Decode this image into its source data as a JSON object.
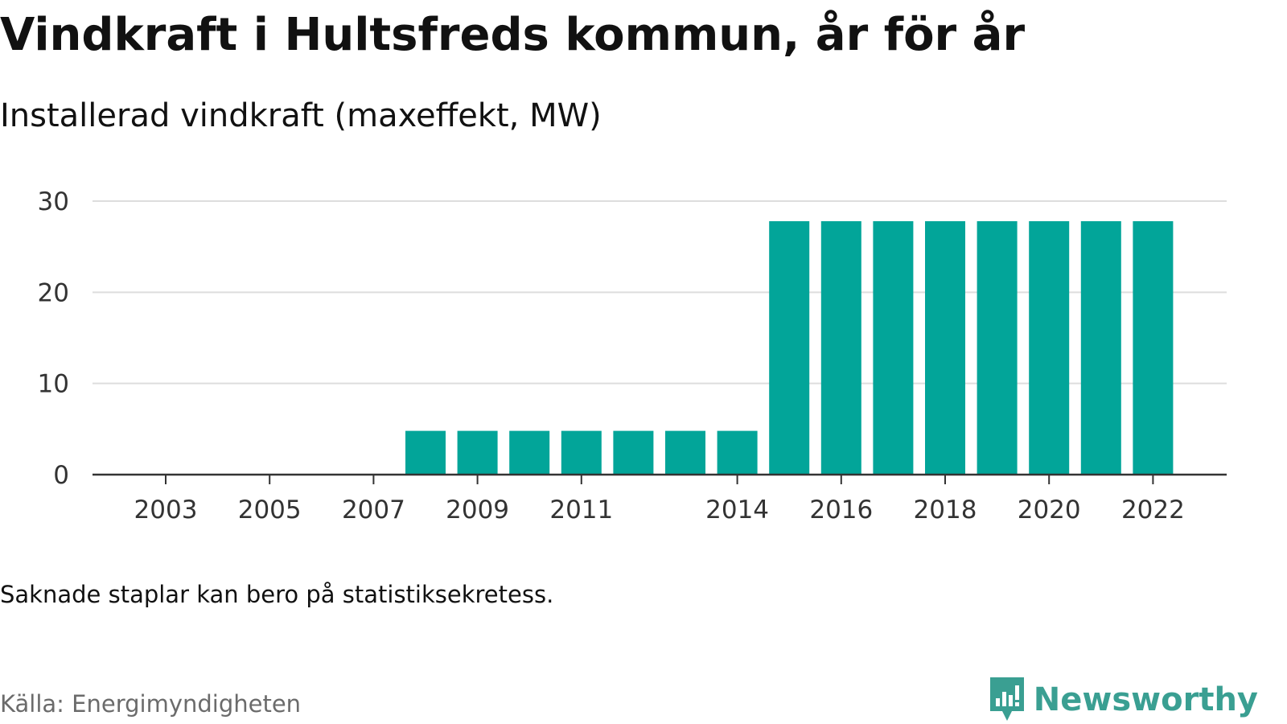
{
  "header": {
    "title": "Vindkraft i Hultsfreds kommun, år för år",
    "subtitle": "Installerad vindkraft (maxeffekt, MW)"
  },
  "footer": {
    "note": "Saknade staplar kan bero på statistiksekretess.",
    "source": "Källa: Energimyndigheten",
    "brand": "Newsworthy"
  },
  "colors": {
    "bar": "#02A599",
    "grid": "#dddddd",
    "axis": "#333333",
    "brand": "#3a9f92"
  },
  "chart_data": {
    "type": "bar",
    "title": "Vindkraft i Hultsfreds kommun, år för år",
    "subtitle": "Installerad vindkraft (maxeffekt, MW)",
    "xlabel": "",
    "ylabel": "",
    "categories": [
      2002,
      2003,
      2004,
      2005,
      2006,
      2007,
      2008,
      2009,
      2010,
      2011,
      2012,
      2013,
      2014,
      2015,
      2016,
      2017,
      2018,
      2019,
      2020,
      2021,
      2022
    ],
    "values": [
      0,
      0,
      0,
      0,
      0,
      0,
      4.8,
      4.8,
      4.8,
      4.8,
      4.8,
      4.8,
      4.8,
      27.8,
      27.8,
      27.8,
      27.8,
      27.8,
      27.8,
      27.8,
      27.8
    ],
    "x_tick_labels": [
      "2003",
      "2005",
      "2007",
      "2009",
      "2011",
      "2014",
      "2016",
      "2018",
      "2020",
      "2022"
    ],
    "y_ticks": [
      0,
      10,
      20,
      30
    ],
    "ylim": [
      0,
      30
    ],
    "grid": true,
    "legend": "none"
  }
}
